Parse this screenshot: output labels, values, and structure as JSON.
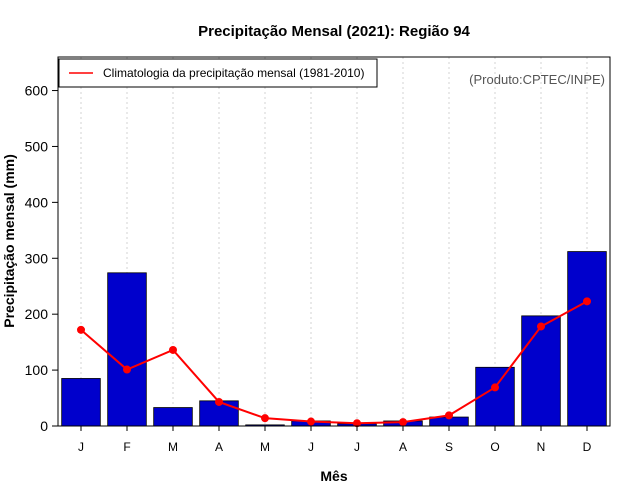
{
  "chart_data": {
    "type": "bar",
    "title": "Precipitação Mensal (2021): Região 94",
    "xlabel": "Mês",
    "ylabel": "Precipitação mensal (mm)",
    "categories": [
      "J",
      "F",
      "M",
      "A",
      "M",
      "J",
      "J",
      "A",
      "S",
      "O",
      "N",
      "D"
    ],
    "ylim": [
      0,
      660
    ],
    "yticks": [
      0,
      100,
      200,
      300,
      400,
      500,
      600
    ],
    "grid": "vertical dotted",
    "series": [
      {
        "name": "Precipitação mensal (2021)",
        "type": "bar",
        "color": "#0000cc",
        "values": [
          85,
          274,
          33,
          45,
          2,
          9,
          4,
          9,
          16,
          105,
          197,
          312
        ]
      },
      {
        "name": "Climatologia da precipitação mensal (1981-2010)",
        "type": "line",
        "color": "#ff0000",
        "values": [
          172,
          101,
          136,
          43,
          14,
          8,
          5,
          7,
          19,
          69,
          178,
          223
        ]
      }
    ],
    "legend": {
      "position": "top-left",
      "entries": [
        "Climatologia da precipitação mensal (1981-2010)"
      ]
    },
    "annotation": "(Produto:CPTEC/INPE)"
  }
}
